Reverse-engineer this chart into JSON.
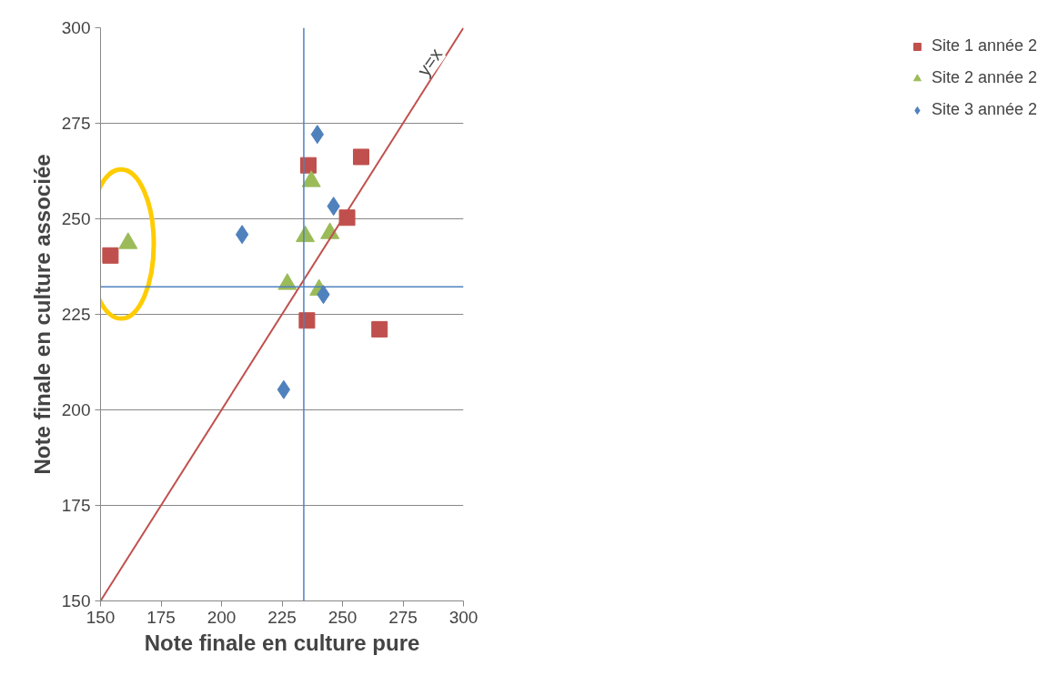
{
  "chart_data": {
    "type": "scatter",
    "xlabel": "Note finale en culture pure",
    "ylabel": "Note finale en culture associée",
    "xlim": [
      150,
      300
    ],
    "ylim": [
      150,
      300
    ],
    "xticks": [
      150,
      175,
      200,
      225,
      250,
      275,
      300
    ],
    "yticks": [
      150,
      175,
      200,
      225,
      250,
      275,
      300
    ],
    "grid": "y",
    "legend": "right",
    "series": [
      {
        "name": "Site 1 année 2",
        "color": "#c0504d",
        "marker": "square",
        "x": [
          154.1,
          235.9,
          257.7,
          251.9,
          235.3,
          265.3
        ],
        "values": [
          240.4,
          264.0,
          266.2,
          250.3,
          223.4,
          221.1
        ]
      },
      {
        "name": "Site 2 année 2",
        "color": "#9bbb59",
        "marker": "triangle",
        "x": [
          161.4,
          237.1,
          234.6,
          244.8,
          227.2,
          240.3
        ],
        "values": [
          243.6,
          259.8,
          245.4,
          246.2,
          232.9,
          231.4
        ]
      },
      {
        "name": "Site 3 année 2",
        "color": "#4f81bd",
        "marker": "diamond",
        "x": [
          239.6,
          246.3,
          208.5,
          242.1,
          225.7
        ],
        "values": [
          272.1,
          253.3,
          245.9,
          230.2,
          205.3
        ]
      },
      {
        "type": "line",
        "color": "#c0504d",
        "x": [
          150,
          300
        ],
        "values": [
          150,
          300
        ]
      }
    ],
    "ref_lines": [
      {
        "axis": "x",
        "value": 234,
        "color": "#4f81bd"
      },
      {
        "axis": "y",
        "value": 232.2,
        "color": "#4f81bd"
      }
    ],
    "annotations": [
      {
        "text": "y=x",
        "x": 286,
        "y": 291
      }
    ]
  }
}
